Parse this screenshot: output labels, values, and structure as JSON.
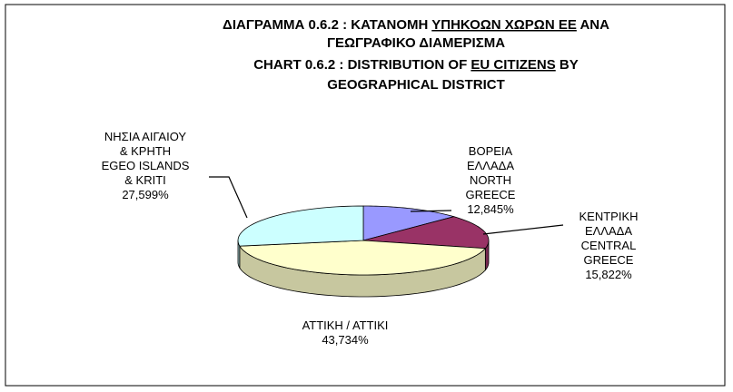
{
  "chart_data": {
    "type": "pie",
    "title": [
      [
        {
          "text": "ΔΙΑΓΡΑΜΜΑ 0.6.2 : ΚΑΤΑΝΟΜΗ "
        },
        {
          "text": "ΥΠΗΚΟΩΝ ΧΩΡΩΝ ΕΕ",
          "underline": true
        },
        {
          "text": " ΑΝΑ"
        }
      ],
      [
        {
          "text": "ΓΕΩΓΡΑΦΙΚΟ ΔΙΑΜΕΡΙΣΜΑ"
        }
      ],
      [
        {
          "text": "CHART 0.6.2 : DISTRIBUTION OF "
        },
        {
          "text": "EU CITIZENS",
          "underline": true
        },
        {
          "text": " BY"
        }
      ],
      [
        {
          "text": "GEOGRAPHICAL DISTRICT"
        }
      ]
    ],
    "categories": [
      [
        "ΒΟΡΕΙΑ",
        "ΕΛΛΑΔΑ",
        "NORTH",
        "GREECE"
      ],
      [
        "ΚΕΝΤΡΙΚΗ",
        "ΕΛΛΑΔΑ",
        "CENTRAL",
        "GREECE"
      ],
      [
        "ΑΤΤΙΚΗ / ΑΤΤΙΚΙ"
      ],
      [
        "ΝΗΣΙΑ ΑΙΓΑΙΟΥ",
        "& ΚΡΗΤΗ",
        "EGEO ISLANDS",
        "& KRITI"
      ]
    ],
    "values": [
      12.845,
      15.822,
      43.734,
      27.599
    ],
    "value_labels": [
      "12,845%",
      "15,822%",
      "43,734%",
      "27,599%"
    ],
    "colors": [
      "#9999ff",
      "#993366",
      "#ffffcc",
      "#ccffff"
    ]
  }
}
